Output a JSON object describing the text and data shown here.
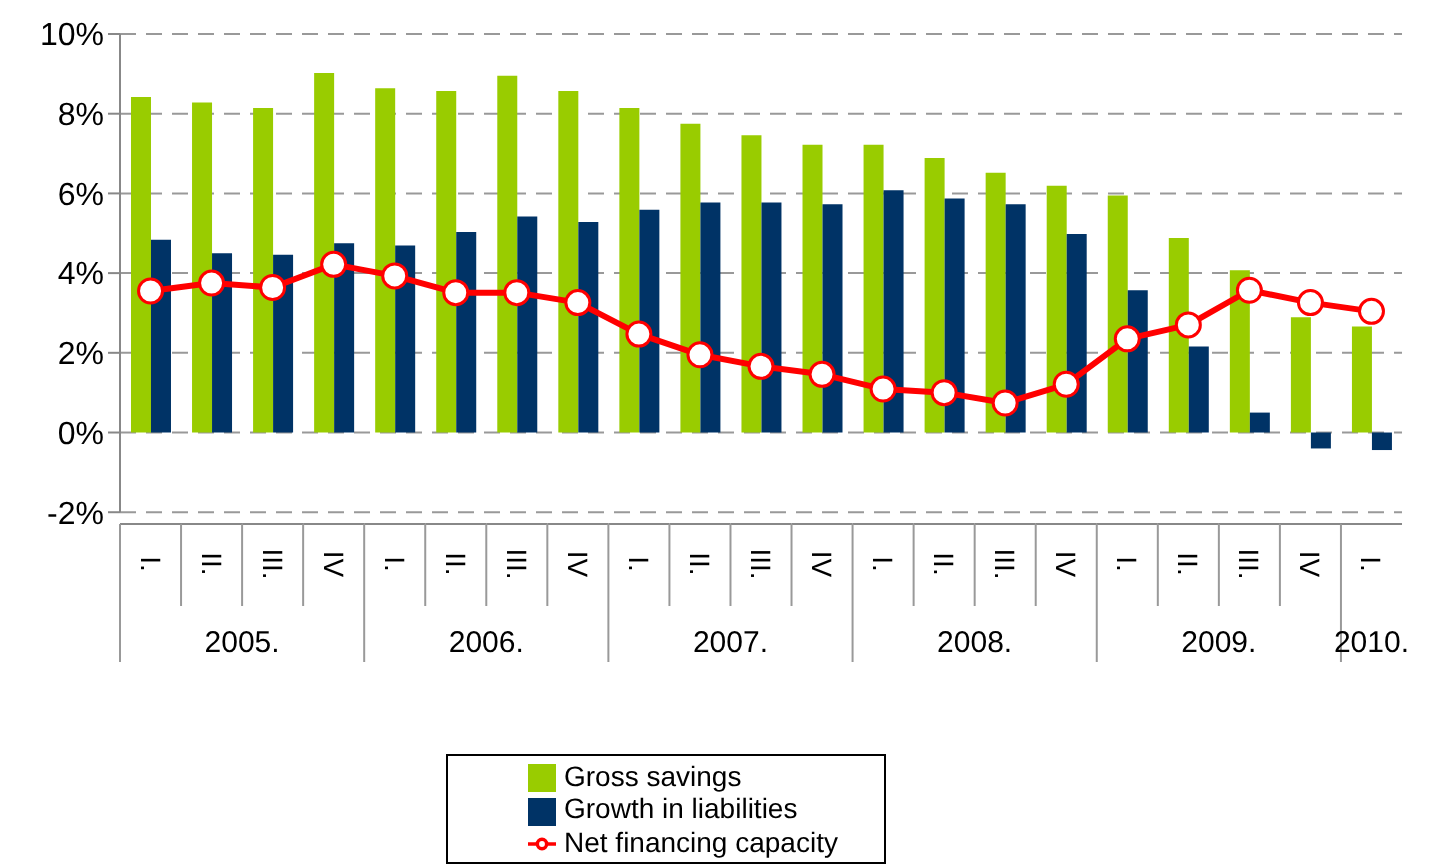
{
  "chart_data": {
    "type": "bar",
    "categories": [
      "I.",
      "II.",
      "III.",
      "IV",
      "I.",
      "II.",
      "III.",
      "IV",
      "I.",
      "II.",
      "III.",
      "IV",
      "I.",
      "II.",
      "III.",
      "IV",
      "I.",
      "II.",
      "III.",
      "IV",
      "I."
    ],
    "annotations": [
      "2005.",
      "2006.",
      "2007.",
      "2008.",
      "2009.",
      "2010."
    ],
    "series": [
      {
        "name": "Gross savings",
        "color": "#99cc00",
        "values": [
          8.42,
          8.28,
          8.14,
          9.02,
          8.64,
          8.57,
          8.95,
          8.57,
          8.14,
          7.75,
          7.46,
          7.22,
          7.22,
          6.89,
          6.52,
          6.19,
          5.95,
          4.88,
          4.07,
          2.89,
          2.66
        ]
      },
      {
        "name": "Growth in liabilities",
        "color": "#003366",
        "values": [
          4.84,
          4.5,
          4.46,
          4.75,
          4.69,
          5.03,
          5.42,
          5.28,
          5.59,
          5.77,
          5.77,
          5.73,
          6.08,
          5.87,
          5.73,
          4.98,
          3.57,
          2.16,
          0.5,
          -0.4,
          -0.44
        ]
      },
      {
        "name": "Net financing capacity",
        "type": "line",
        "color": "#ff0000",
        "marker": "circle",
        "values": [
          3.55,
          3.75,
          3.64,
          4.22,
          3.93,
          3.51,
          3.51,
          3.26,
          2.47,
          1.95,
          1.66,
          1.46,
          1.09,
          1.0,
          0.74,
          1.21,
          2.35,
          2.7,
          3.57,
          3.26,
          3.04
        ]
      }
    ],
    "ylim": [
      -2,
      10
    ],
    "yticks": [
      {
        "value": -2,
        "label": "-2%"
      },
      {
        "value": 0,
        "label": "0%"
      },
      {
        "value": 2,
        "label": "2%"
      },
      {
        "value": 4,
        "label": "4%"
      },
      {
        "value": 6,
        "label": "6%"
      },
      {
        "value": 8,
        "label": "8%"
      },
      {
        "value": 10,
        "label": "10%"
      }
    ],
    "grid": "y",
    "legend": "bottom"
  }
}
